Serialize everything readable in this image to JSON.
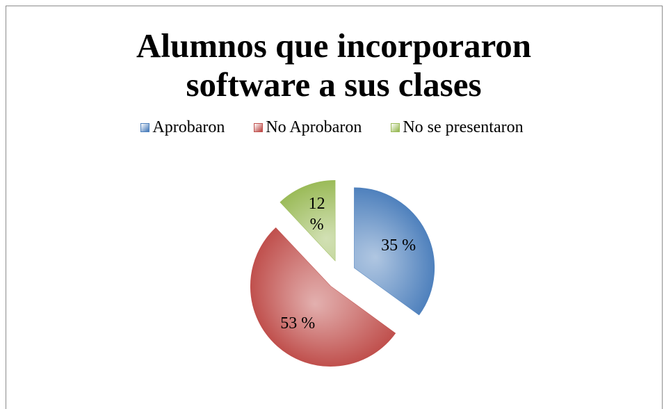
{
  "chart_data": {
    "type": "pie",
    "title": "Alumnos que incorporaron software a sus clases",
    "categories": [
      "Aprobaron",
      "No Aprobaron",
      "No se presentaron"
    ],
    "values": [
      35,
      53,
      12
    ],
    "value_labels": [
      "35 %",
      "53 %",
      "12 %"
    ],
    "colors": [
      "#4f81bd",
      "#c0504d",
      "#9bbb59"
    ],
    "legend": "top",
    "exploded": true
  }
}
